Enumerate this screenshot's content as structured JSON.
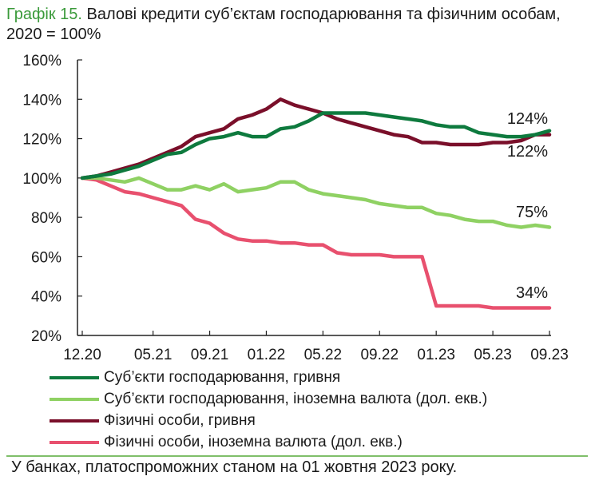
{
  "title": {
    "figure_label": "Графік 15.",
    "text": "Валові кредити суб’єктам господарювання та фізичним особам, 2020 = 100%"
  },
  "footer": "У банках, платоспроможних станом на 01 жовтня 2023 року.",
  "chart_data": {
    "type": "line",
    "xlabel": "",
    "ylabel": "",
    "ylim": [
      20,
      160
    ],
    "yticks": [
      "20%",
      "40%",
      "60%",
      "80%",
      "100%",
      "120%",
      "140%",
      "160%"
    ],
    "x": [
      "12.20",
      "01.21",
      "02.21",
      "03.21",
      "04.21",
      "05.21",
      "06.21",
      "07.21",
      "08.21",
      "09.21",
      "10.21",
      "11.21",
      "12.21",
      "01.22",
      "02.22",
      "03.22",
      "04.22",
      "05.22",
      "06.22",
      "07.22",
      "08.22",
      "09.22",
      "10.22",
      "11.22",
      "12.22",
      "01.23",
      "02.23",
      "03.23",
      "04.23",
      "05.23",
      "06.23",
      "07.23",
      "08.23",
      "09.23"
    ],
    "xtick_labels": [
      "12.20",
      "05.21",
      "09.21",
      "01.22",
      "05.22",
      "09.22",
      "01.23",
      "05.23",
      "09.23"
    ],
    "grid": false,
    "legend_position": "bottom",
    "series": [
      {
        "name": "Суб’єкти господарювання, гривня",
        "color": "#0e7a3e",
        "values": [
          100,
          101,
          102,
          104,
          106,
          109,
          112,
          113,
          117,
          120,
          121,
          123,
          121,
          121,
          125,
          126,
          129,
          133,
          133,
          133,
          133,
          132,
          131,
          130,
          129,
          127,
          126,
          126,
          123,
          122,
          121,
          121,
          122,
          124
        ]
      },
      {
        "name": "Суб’єкти господарювання, іноземна валюта (дол. екв.)",
        "color": "#8fd163",
        "values": [
          100,
          100,
          99,
          98,
          100,
          97,
          94,
          94,
          96,
          94,
          97,
          93,
          94,
          95,
          98,
          98,
          94,
          92,
          91,
          90,
          89,
          87,
          86,
          85,
          85,
          82,
          81,
          79,
          78,
          78,
          76,
          75,
          76,
          75
        ]
      },
      {
        "name": "Фізичні особи, гривня",
        "color": "#7a0f2a",
        "values": [
          100,
          101,
          103,
          105,
          107,
          110,
          113,
          116,
          121,
          123,
          125,
          130,
          132,
          135,
          140,
          137,
          135,
          133,
          130,
          128,
          126,
          124,
          122,
          121,
          118,
          118,
          117,
          117,
          117,
          118,
          118,
          119,
          122,
          122
        ]
      },
      {
        "name": "Фізичні особи, іноземна валюта (дол. екв.)",
        "color": "#e8506e",
        "values": [
          100,
          99,
          96,
          93,
          92,
          90,
          88,
          86,
          79,
          77,
          72,
          69,
          68,
          68,
          67,
          67,
          66,
          66,
          62,
          61,
          61,
          61,
          60,
          60,
          60,
          35,
          35,
          35,
          35,
          34,
          34,
          34,
          34,
          34
        ]
      }
    ],
    "end_labels": [
      "124%",
      "75%",
      "122%",
      "34%"
    ]
  }
}
